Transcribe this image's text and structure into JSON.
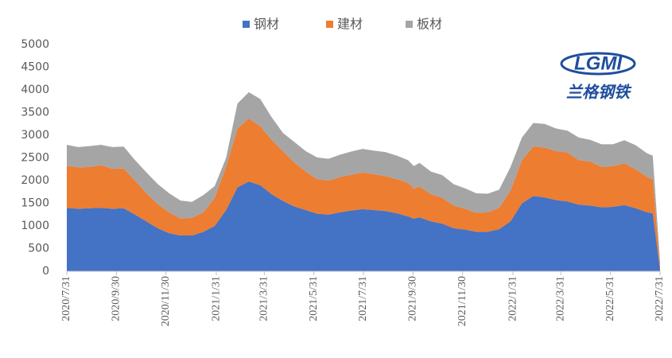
{
  "chart_data": {
    "type": "stacked_area",
    "x": [
      "2020/7/31",
      "2020/8/14",
      "2020/8/28",
      "2020/9/11",
      "2020/9/25",
      "2020/10/9",
      "2020/10/23",
      "2020/11/6",
      "2020/11/20",
      "2020/12/4",
      "2020/12/18",
      "2021/1/1",
      "2021/1/15",
      "2021/1/29",
      "2021/2/12",
      "2021/2/26",
      "2021/3/12",
      "2021/3/26",
      "2021/4/9",
      "2021/4/23",
      "2021/5/7",
      "2021/5/21",
      "2021/6/4",
      "2021/6/18",
      "2021/7/2",
      "2021/7/16",
      "2021/7/30",
      "2021/8/13",
      "2021/8/27",
      "2021/9/10",
      "2021/9/24",
      "2021/10/1",
      "2021/10/8",
      "2021/10/22",
      "2021/11/5",
      "2021/11/19",
      "2021/12/3",
      "2021/12/17",
      "2021/12/31",
      "2022/1/14",
      "2022/1/28",
      "2022/2/11",
      "2022/2/25",
      "2022/3/11",
      "2022/3/25",
      "2022/4/8",
      "2022/4/22",
      "2022/5/6",
      "2022/5/20",
      "2022/6/3",
      "2022/6/17",
      "2022/7/1",
      "2022/7/15",
      "2022/7/22",
      "2022/7/31"
    ],
    "series": [
      {
        "name": "钢材",
        "color": "#4472c4",
        "values": [
          1400,
          1380,
          1390,
          1400,
          1380,
          1390,
          1250,
          1100,
          950,
          840,
          790,
          790,
          870,
          1000,
          1350,
          1850,
          1980,
          1900,
          1700,
          1550,
          1430,
          1350,
          1270,
          1250,
          1300,
          1340,
          1370,
          1350,
          1330,
          1280,
          1210,
          1160,
          1190,
          1100,
          1050,
          950,
          920,
          870,
          870,
          930,
          1100,
          1500,
          1660,
          1630,
          1570,
          1540,
          1470,
          1450,
          1410,
          1420,
          1460,
          1390,
          1300,
          1280,
          30
        ]
      },
      {
        "name": "建材",
        "color": "#ed7d31",
        "values": [
          930,
          910,
          910,
          940,
          880,
          880,
          750,
          620,
          530,
          460,
          370,
          390,
          430,
          620,
          950,
          1300,
          1390,
          1300,
          1200,
          1100,
          970,
          850,
          760,
          750,
          780,
          790,
          810,
          790,
          770,
          750,
          740,
          660,
          680,
          600,
          570,
          500,
          460,
          420,
          430,
          470,
          680,
          950,
          1090,
          1100,
          1080,
          1080,
          980,
          970,
          890,
          900,
          920,
          860,
          780,
          750,
          90
        ]
      },
      {
        "name": "板材",
        "color": "#a5a5a5",
        "values": [
          460,
          450,
          460,
          450,
          480,
          480,
          450,
          460,
          440,
          420,
          400,
          350,
          380,
          260,
          200,
          550,
          580,
          600,
          500,
          400,
          450,
          450,
          480,
          480,
          490,
          510,
          520,
          520,
          530,
          520,
          500,
          500,
          520,
          500,
          500,
          470,
          450,
          430,
          410,
          400,
          520,
          500,
          520,
          520,
          500,
          480,
          500,
          480,
          500,
          480,
          510,
          530,
          520,
          520,
          80
        ]
      }
    ],
    "ylim": [
      0,
      5000
    ],
    "yticks": [
      0,
      500,
      1000,
      1500,
      2000,
      2500,
      3000,
      3500,
      4000,
      4500,
      5000
    ],
    "xlim": [
      "2020/7/31",
      "2022/7/31"
    ],
    "xticks": [
      "2020/7/31",
      "2020/9/30",
      "2020/11/30",
      "2021/1/31",
      "2021/3/31",
      "2021/5/31",
      "2021/7/31",
      "2021/9/30",
      "2021/11/30",
      "2022/1/31",
      "2022/3/31",
      "2022/5/31",
      "2022/7/31"
    ],
    "logo": {
      "mark": "LGMI",
      "text": "兰格钢铁"
    }
  }
}
